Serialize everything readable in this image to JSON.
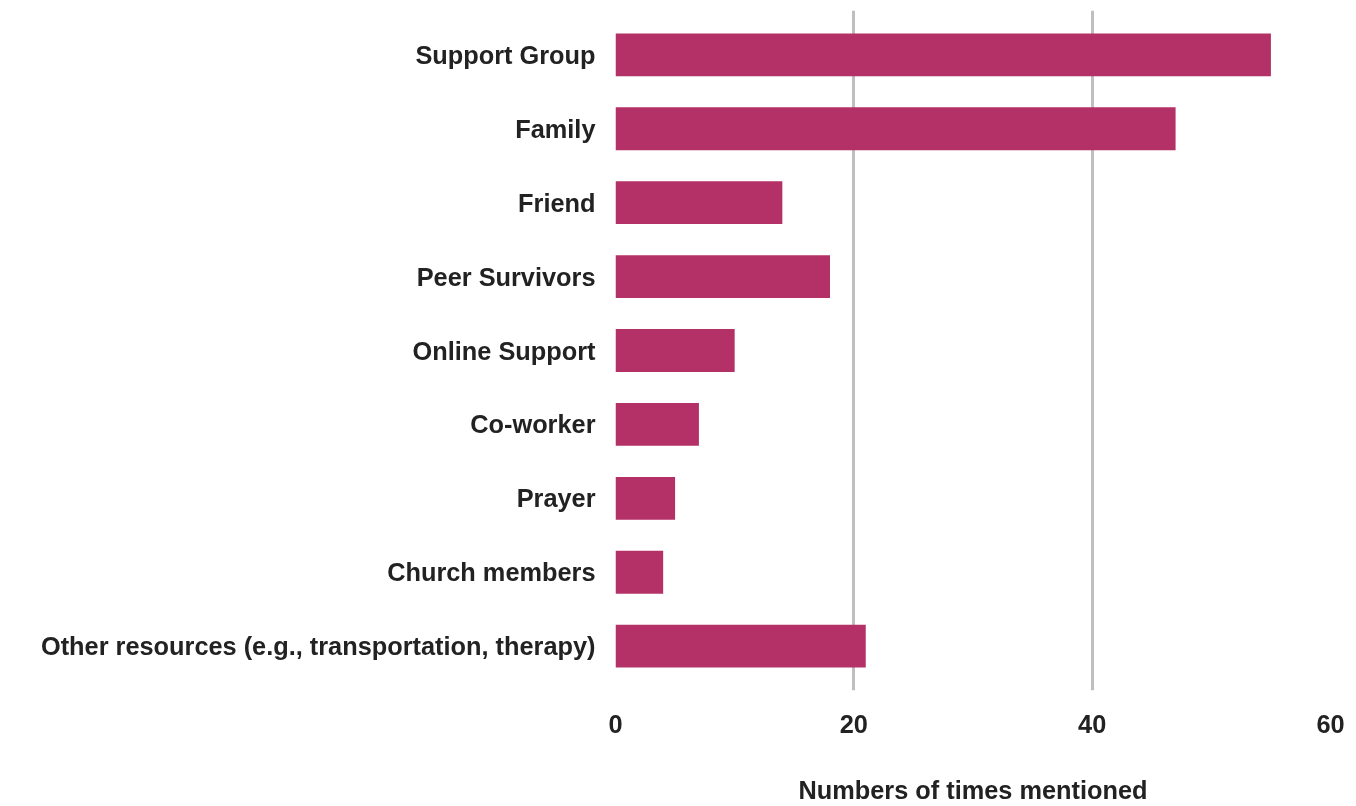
{
  "chart_data": {
    "type": "bar",
    "orientation": "horizontal",
    "xlabel": "Numbers of times mentioned",
    "categories": [
      "Support Group",
      "Family",
      "Friend",
      "Peer Survivors",
      "Online Support",
      "Co-worker",
      "Prayer",
      "Church members",
      "Other resources (e.g., transportation, therapy)"
    ],
    "values": [
      55,
      47,
      14,
      18,
      10,
      7,
      5,
      4,
      21
    ],
    "color": "#b33166",
    "xlim": [
      0,
      60
    ],
    "xticks": [
      0,
      20,
      40,
      60
    ],
    "grid": "x"
  }
}
